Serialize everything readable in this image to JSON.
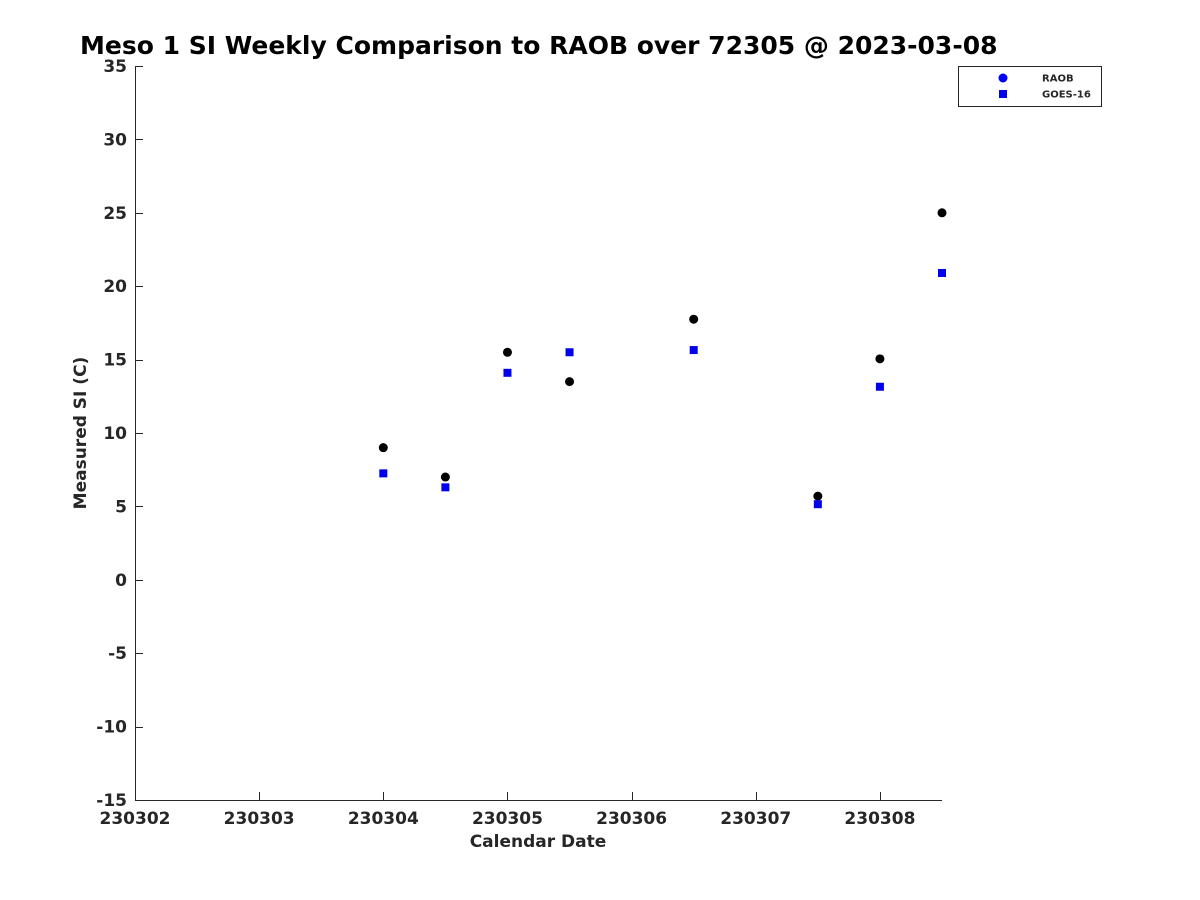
{
  "chart_data": {
    "type": "scatter",
    "title": "Meso 1 SI Weekly Comparison to RAOB over 72305 @ 2023-03-08",
    "xlabel": "Calendar Date",
    "ylabel": "Measured SI (C)",
    "xlim": [
      "2023-03-02",
      "2023-03-08 12:00"
    ],
    "ylim": [
      -15,
      35
    ],
    "x_ticks": [
      {
        "value": "2023-03-02",
        "label": "230302"
      },
      {
        "value": "2023-03-03",
        "label": "230303"
      },
      {
        "value": "2023-03-04",
        "label": "230304"
      },
      {
        "value": "2023-03-05",
        "label": "230305"
      },
      {
        "value": "2023-03-06",
        "label": "230306"
      },
      {
        "value": "2023-03-07",
        "label": "230307"
      },
      {
        "value": "2023-03-08",
        "label": "230308"
      }
    ],
    "y_ticks": [
      35,
      30,
      25,
      20,
      15,
      10,
      5,
      0,
      -5,
      -10,
      -15
    ],
    "grid": false,
    "legend_position": "top-right",
    "series": [
      {
        "name": "RAOB",
        "marker": "circle",
        "color": "#000000",
        "legend_color": "#0000ff",
        "points": [
          {
            "x": "2023-03-04 00:00",
            "y": 9.0
          },
          {
            "x": "2023-03-04 12:00",
            "y": 7.0
          },
          {
            "x": "2023-03-05 00:00",
            "y": 15.5
          },
          {
            "x": "2023-03-05 12:00",
            "y": 13.5
          },
          {
            "x": "2023-03-06 12:00",
            "y": 17.75
          },
          {
            "x": "2023-03-07 12:00",
            "y": 5.7
          },
          {
            "x": "2023-03-08 00:00",
            "y": 15.05
          },
          {
            "x": "2023-03-08 12:00",
            "y": 25.0
          }
        ]
      },
      {
        "name": "GOES-16",
        "marker": "square",
        "color": "#0000ee",
        "legend_color": "#0000ee",
        "points": [
          {
            "x": "2023-03-04 00:00",
            "y": 7.25
          },
          {
            "x": "2023-03-04 12:00",
            "y": 6.3
          },
          {
            "x": "2023-03-05 00:00",
            "y": 14.1
          },
          {
            "x": "2023-03-05 12:00",
            "y": 15.5
          },
          {
            "x": "2023-03-06 12:00",
            "y": 15.65
          },
          {
            "x": "2023-03-07 12:00",
            "y": 5.15
          },
          {
            "x": "2023-03-08 00:00",
            "y": 13.15
          },
          {
            "x": "2023-03-08 12:00",
            "y": 20.9
          }
        ]
      }
    ]
  }
}
